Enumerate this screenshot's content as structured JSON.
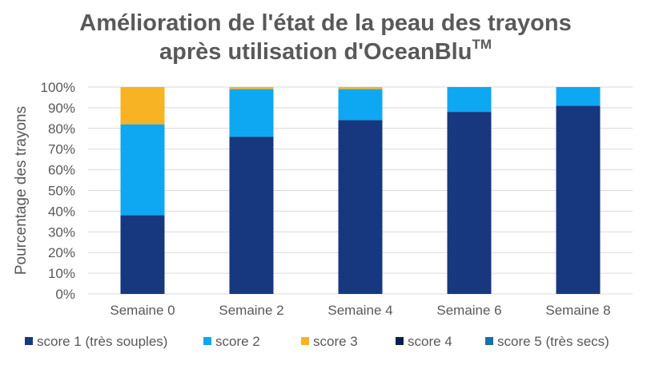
{
  "chart_data": {
    "type": "bar",
    "stacked": true,
    "title_line1": "Amélioration de l'état de la peau des trayons",
    "title_line2": "après utilisation d'OceanBlu",
    "title_sup": "TM",
    "ylabel": "Pourcentage des trayons",
    "ylim": [
      0,
      100
    ],
    "yticks": [
      "0%",
      "10%",
      "20%",
      "30%",
      "40%",
      "50%",
      "60%",
      "70%",
      "80%",
      "90%",
      "100%"
    ],
    "grid": true,
    "legend_position": "bottom",
    "categories": [
      "Semaine 0",
      "Semaine 2",
      "Semaine 4",
      "Semaine 6",
      "Semaine 8"
    ],
    "series": [
      {
        "name": "score 1 (très souples)",
        "color": "#17377f",
        "values": [
          38,
          76,
          84,
          88,
          91
        ]
      },
      {
        "name": "score 2",
        "color": "#0ea8f2",
        "values": [
          44,
          23,
          15,
          12,
          9
        ]
      },
      {
        "name": "score 3",
        "color": "#f7b324",
        "values": [
          18,
          1,
          1,
          0,
          0
        ]
      },
      {
        "name": "score 4",
        "color": "#0b1f4a",
        "values": [
          0,
          0,
          0,
          0,
          0
        ]
      },
      {
        "name": "score 5 (très secs)",
        "color": "#1a6fa8",
        "values": [
          0,
          0,
          0,
          0,
          0
        ]
      }
    ]
  }
}
